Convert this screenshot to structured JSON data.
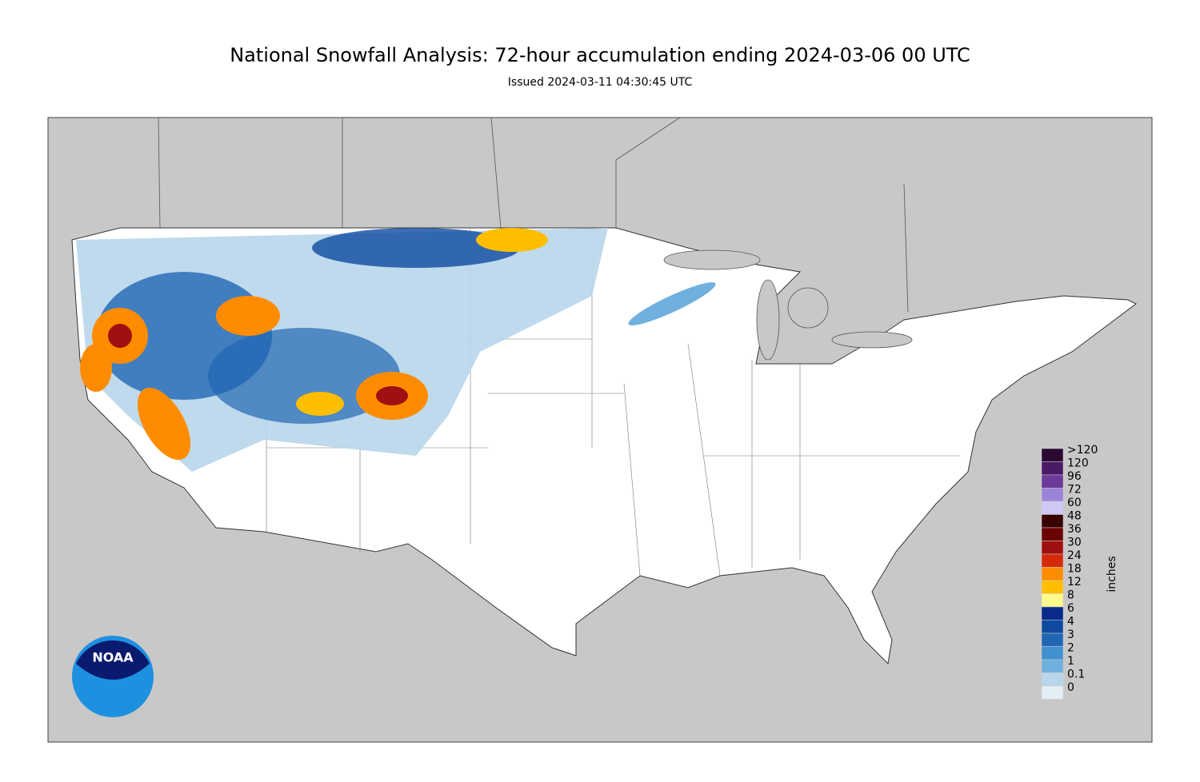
{
  "header": {
    "title": "National Snowfall Analysis: 72-hour accumulation ending 2024-03-06 00 UTC",
    "subtitle": "Issued 2024-03-11 04:30:45 UTC"
  },
  "logo": {
    "text": "NOAA"
  },
  "legend": {
    "unit": "inches",
    "levels": [
      {
        "label": ">120",
        "color": "#2a0a33"
      },
      {
        "label": "120",
        "color": "#4b1a66"
      },
      {
        "label": "96",
        "color": "#6e3a99"
      },
      {
        "label": "72",
        "color": "#9b84d8"
      },
      {
        "label": "60",
        "color": "#cfc8f5"
      },
      {
        "label": "48",
        "color": "#3a0303"
      },
      {
        "label": "36",
        "color": "#6a0404"
      },
      {
        "label": "30",
        "color": "#a01010"
      },
      {
        "label": "24",
        "color": "#d42a0a"
      },
      {
        "label": "18",
        "color": "#ff8c00"
      },
      {
        "label": "12",
        "color": "#ffbe00"
      },
      {
        "label": "8",
        "color": "#fffa8c"
      },
      {
        "label": "6",
        "color": "#0a2a8c"
      },
      {
        "label": "4",
        "color": "#0e4aa0"
      },
      {
        "label": "3",
        "color": "#2166b4"
      },
      {
        "label": "2",
        "color": "#4190d0"
      },
      {
        "label": "1",
        "color": "#6fb0de"
      },
      {
        "label": "0.1",
        "color": "#b8d6ea"
      },
      {
        "label": "0",
        "color": "#e4eef5"
      }
    ]
  }
}
